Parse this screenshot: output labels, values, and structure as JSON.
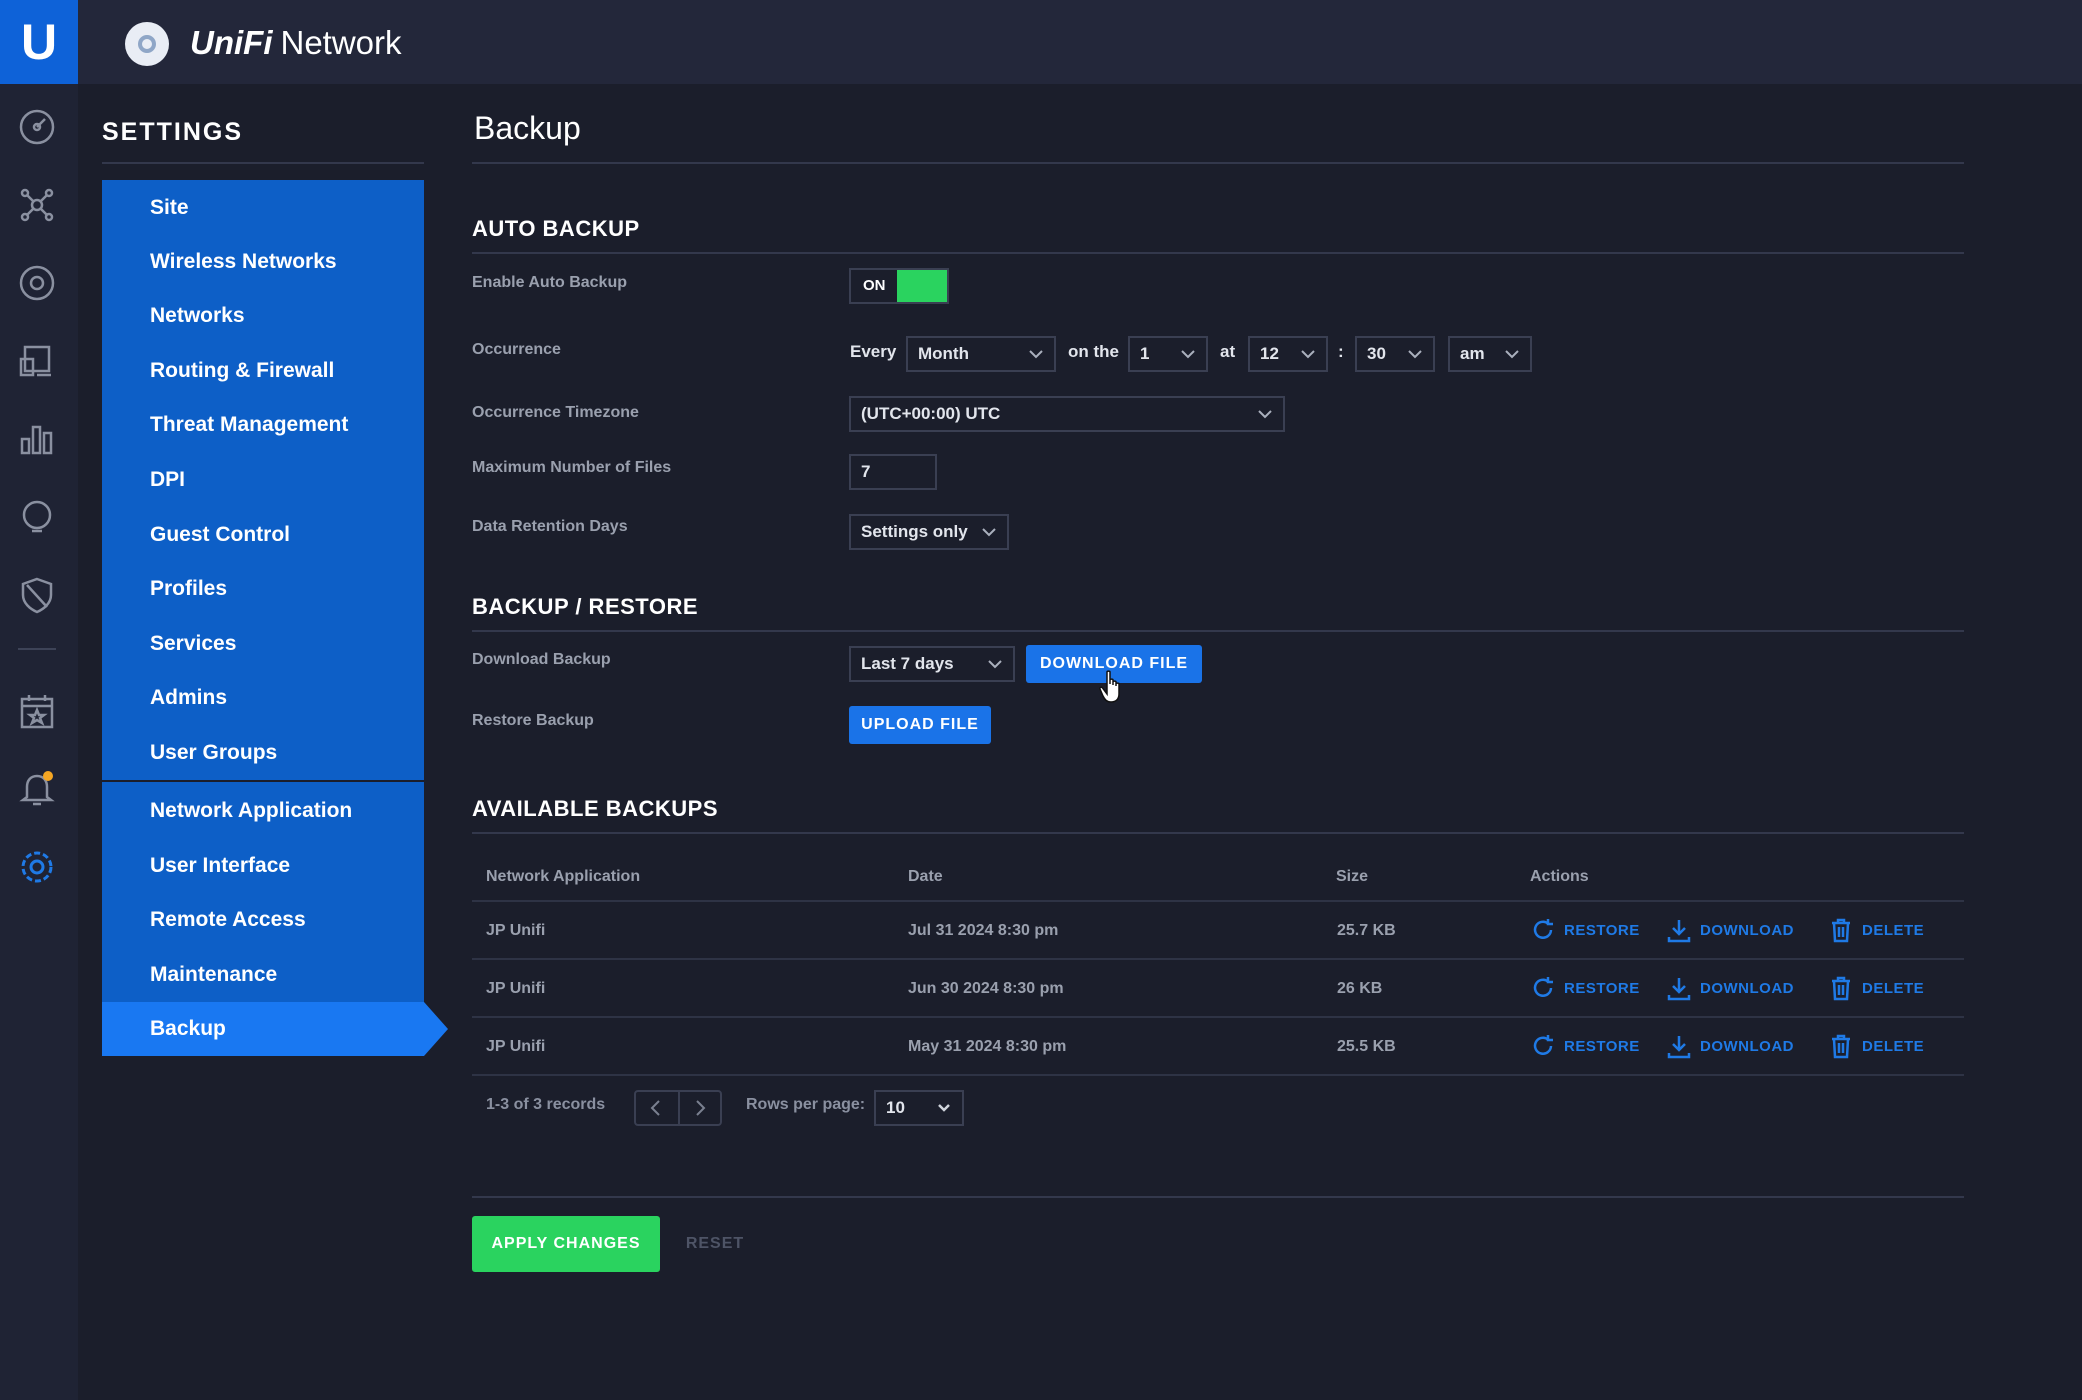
{
  "app": {
    "brand_letter": "U",
    "brand_name": "UniFi",
    "product_name": "Network"
  },
  "rail": {
    "icons": [
      "dashboard-icon",
      "topology-icon",
      "devices-icon",
      "clients-icon",
      "statistics-icon",
      "insights-icon",
      "security-icon",
      "events-icon",
      "alerts-icon",
      "settings-icon"
    ],
    "alert_dot_color": "#f5a623"
  },
  "settings": {
    "title": "SETTINGS",
    "nav_group1": [
      "Site",
      "Wireless Networks",
      "Networks",
      "Routing & Firewall",
      "Threat Management",
      "DPI",
      "Guest Control",
      "Profiles",
      "Services",
      "Admins",
      "User Groups"
    ],
    "nav_group2": [
      "Network Application",
      "User Interface",
      "Remote Access",
      "Maintenance",
      "Backup"
    ],
    "active": "Backup"
  },
  "page": {
    "title": "Backup"
  },
  "auto_backup": {
    "title": "AUTO BACKUP",
    "enable_label": "Enable Auto Backup",
    "toggle_text": "ON",
    "occurrence_label": "Occurrence",
    "every_label": "Every",
    "period_value": "Month",
    "on_the_label": "on the",
    "day_value": "1",
    "at_label": "at",
    "hour_value": "12",
    "colon": ":",
    "minute_value": "30",
    "ampm_value": "am",
    "timezone_label": "Occurrence Timezone",
    "timezone_value": "(UTC+00:00) UTC",
    "max_files_label": "Maximum Number of Files",
    "max_files_value": "7",
    "retention_label": "Data Retention Days",
    "retention_value": "Settings only"
  },
  "backup_restore": {
    "title": "BACKUP / RESTORE",
    "download_label": "Download Backup",
    "download_range_value": "Last 7 days",
    "download_button": "DOWNLOAD FILE",
    "restore_label": "Restore Backup",
    "upload_button": "UPLOAD FILE"
  },
  "available": {
    "title": "AVAILABLE BACKUPS",
    "columns": [
      "Network Application",
      "Date",
      "Size",
      "Actions"
    ],
    "rows": [
      {
        "app": "JP Unifi",
        "date": "Jul 31 2024 8:30 pm",
        "size": "25.7 KB"
      },
      {
        "app": "JP Unifi",
        "date": "Jun 30 2024 8:30 pm",
        "size": "26 KB"
      },
      {
        "app": "JP Unifi",
        "date": "May 31 2024 8:30 pm",
        "size": "25.5 KB"
      }
    ],
    "action_restore": "RESTORE",
    "action_download": "DOWNLOAD",
    "action_delete": "DELETE",
    "records_text": "1-3 of 3 records",
    "rows_per_page_label": "Rows per page:",
    "rows_per_page_value": "10"
  },
  "footer": {
    "apply_button": "APPLY CHANGES",
    "reset_button": "RESET"
  },
  "colors": {
    "accent_blue": "#1a73e8",
    "nav_blue": "#0d5fc7",
    "toggle_green": "#2ad35f",
    "background": "#1b1e2b"
  }
}
